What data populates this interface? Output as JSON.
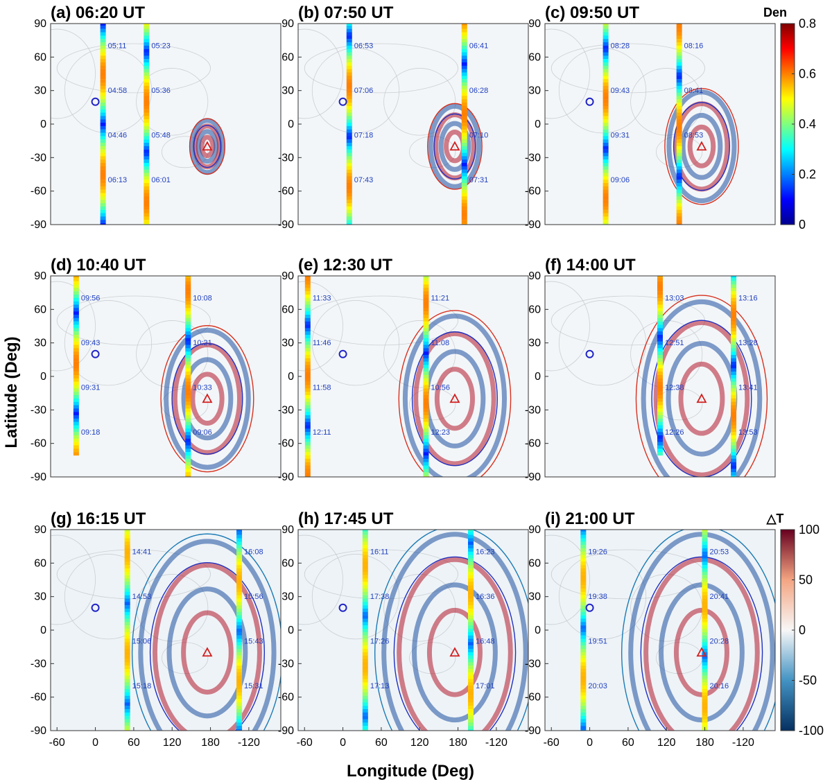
{
  "figure": {
    "xlabel": "Longitude (Deg)",
    "ylabel": "Latitude (Deg)",
    "x_ticks": [
      "-60",
      "0",
      "60",
      "120",
      "180",
      "-120"
    ],
    "y_ticks": [
      "90",
      "60",
      "30",
      "0",
      "-30",
      "-60",
      "-90"
    ]
  },
  "colorbars": [
    {
      "title": "Den",
      "ticks": [
        "0.8",
        "0.6",
        "0.4",
        "0.2",
        "0"
      ],
      "range": [
        0,
        0.8
      ],
      "colormap": "jet"
    },
    {
      "title": "△T",
      "ticks": [
        "100",
        "50",
        "0",
        "-50",
        "-100"
      ],
      "range": [
        -100,
        100
      ],
      "colormap": "RdBu_r"
    }
  ],
  "chart_data": [
    {
      "type": "heatmap",
      "title": "(a) 06:20 UT",
      "field": "Den",
      "source_lonlat": [
        0,
        20
      ],
      "epicenter_lonlat": [
        175,
        -20
      ],
      "track_labels": [
        "05:11",
        "05:23",
        "04:58",
        "05:36",
        "04:46",
        "05:48",
        "06:13",
        "06:01"
      ],
      "tracks": [
        [
          12,
          90,
          -90
        ],
        [
          80,
          90,
          -90
        ]
      ]
    },
    {
      "type": "heatmap",
      "title": "(b) 07:50 UT",
      "field": "Den",
      "source_lonlat": [
        0,
        20
      ],
      "epicenter_lonlat": [
        175,
        -20
      ],
      "track_labels": [
        "06:53",
        "06:41",
        "07:06",
        "06:28",
        "07:18",
        "07:10",
        "07:43",
        "07:31"
      ],
      "tracks": [
        [
          10,
          90,
          -90
        ],
        [
          -170,
          90,
          -90
        ]
      ]
    },
    {
      "type": "heatmap",
      "title": "(c) 09:50 UT",
      "field": "Den",
      "source_lonlat": [
        0,
        20
      ],
      "epicenter_lonlat": [
        175,
        -20
      ],
      "track_labels": [
        "08:28",
        "08:16",
        "09:43",
        "08:41",
        "09:31",
        "08:53",
        "09:06"
      ],
      "tracks": [
        [
          25,
          90,
          -90
        ],
        [
          140,
          90,
          -90
        ]
      ]
    },
    {
      "type": "heatmap",
      "title": "(d) 10:40 UT",
      "field": "Den",
      "source_lonlat": [
        0,
        20
      ],
      "epicenter_lonlat": [
        175,
        -20
      ],
      "track_labels": [
        "09:56",
        "10:08",
        "09:43",
        "10:21",
        "09:31",
        "10:33",
        "09:18",
        "09:06"
      ],
      "tracks": [
        [
          -30,
          90,
          -70
        ],
        [
          145,
          90,
          -90
        ]
      ]
    },
    {
      "type": "heatmap",
      "title": "(e) 12:30 UT",
      "field": "Den",
      "source_lonlat": [
        0,
        20
      ],
      "epicenter_lonlat": [
        175,
        -20
      ],
      "track_labels": [
        "11:33",
        "11:21",
        "11:46",
        "11:08",
        "11:58",
        "10:56",
        "12:11",
        "12:23"
      ],
      "tracks": [
        [
          -55,
          90,
          -90
        ],
        [
          130,
          90,
          -90
        ]
      ]
    },
    {
      "type": "heatmap",
      "title": "(f) 14:00 UT",
      "field": "Den",
      "source_lonlat": [
        0,
        20
      ],
      "epicenter_lonlat": [
        175,
        -20
      ],
      "track_labels": [
        "13:03",
        "13:16",
        "12:51",
        "13:28",
        "12:38",
        "13:41",
        "12:26",
        "13:53"
      ],
      "tracks": [
        [
          110,
          90,
          -70
        ],
        [
          -135,
          90,
          -90
        ]
      ]
    },
    {
      "type": "heatmap",
      "title": "(g) 16:15 UT",
      "field": "△T",
      "source_lonlat": [
        0,
        20
      ],
      "epicenter_lonlat": [
        175,
        -20
      ],
      "track_labels": [
        "14:41",
        "16:08",
        "14:53",
        "15:56",
        "15:06",
        "15:43",
        "15:18",
        "15:31"
      ],
      "tracks": [
        [
          50,
          90,
          -90
        ],
        [
          -135,
          90,
          -90
        ]
      ]
    },
    {
      "type": "heatmap",
      "title": "(h) 17:45 UT",
      "field": "△T",
      "source_lonlat": [
        0,
        20
      ],
      "epicenter_lonlat": [
        175,
        -20
      ],
      "track_labels": [
        "16:11",
        "16:23",
        "17:38",
        "16:36",
        "17:26",
        "16:48",
        "17:13",
        "17:01"
      ],
      "tracks": [
        [
          35,
          90,
          -90
        ],
        [
          -160,
          90,
          -90
        ]
      ]
    },
    {
      "type": "heatmap",
      "title": "(i) 21:00 UT",
      "field": "△T",
      "source_lonlat": [
        0,
        20
      ],
      "epicenter_lonlat": [
        175,
        -20
      ],
      "track_labels": [
        "19:26",
        "20:53",
        "19:38",
        "20:41",
        "19:51",
        "20:28",
        "20:03",
        "20:16"
      ],
      "tracks": [
        [
          -10,
          90,
          -90
        ],
        [
          180,
          90,
          -90
        ]
      ]
    }
  ]
}
